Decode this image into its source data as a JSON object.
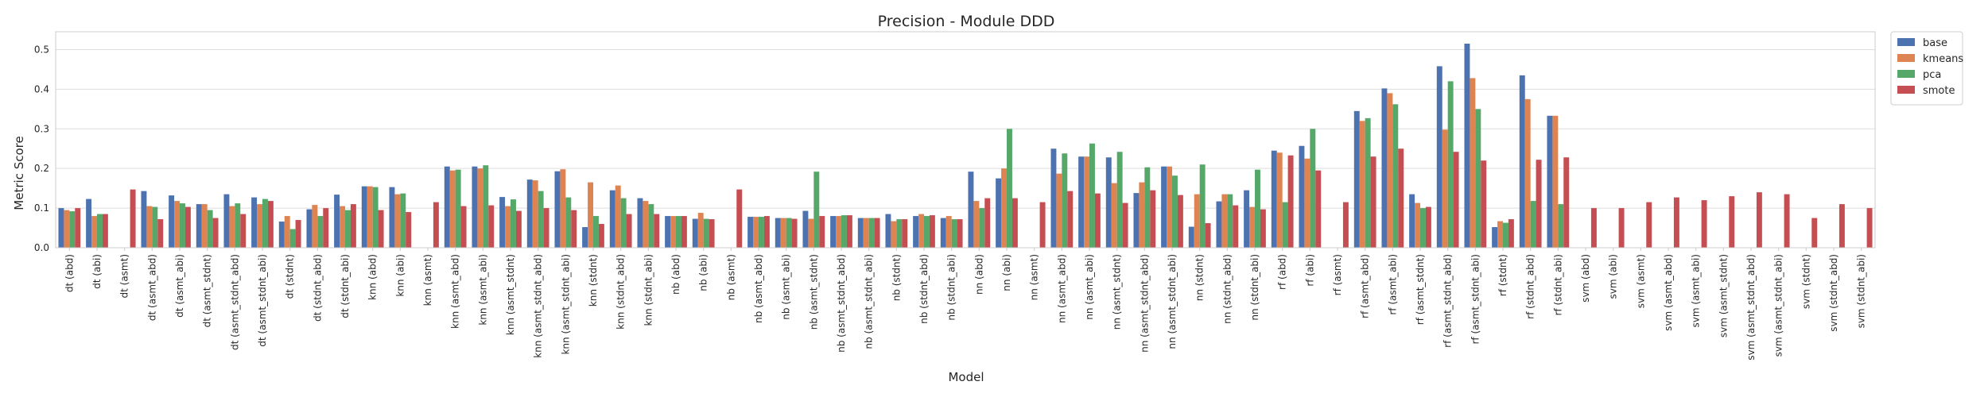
{
  "chart_data": {
    "type": "bar",
    "title": "Precision - Module DDD",
    "xlabel": "Model",
    "ylabel": "Metric Score",
    "ylim": [
      0,
      0.545
    ],
    "yticks": [
      0.0,
      0.1,
      0.2,
      0.3,
      0.4,
      0.5
    ],
    "ytick_labels": [
      "0.0",
      "0.1",
      "0.2",
      "0.3",
      "0.4",
      "0.5"
    ],
    "grid": true,
    "legend_position": "upper-right-outside",
    "categories": [
      "dt (abd)",
      "dt (abi)",
      "dt (asmt)",
      "dt (asmt_abd)",
      "dt (asmt_abi)",
      "dt (asmt_stdnt)",
      "dt (asmt_stdnt_abd)",
      "dt (asmt_stdnt_abi)",
      "dt (stdnt)",
      "dt (stdnt_abd)",
      "dt (stdnt_abi)",
      "knn (abd)",
      "knn (abi)",
      "knn (asmt)",
      "knn (asmt_abd)",
      "knn (asmt_abi)",
      "knn (asmt_stdnt)",
      "knn (asmt_stdnt_abd)",
      "knn (asmt_stdnt_abi)",
      "knn (stdnt)",
      "knn (stdnt_abd)",
      "knn (stdnt_abi)",
      "nb (abd)",
      "nb (abi)",
      "nb (asmt)",
      "nb (asmt_abd)",
      "nb (asmt_abi)",
      "nb (asmt_stdnt)",
      "nb (asmt_stdnt_abd)",
      "nb (asmt_stdnt_abi)",
      "nb (stdnt)",
      "nb (stdnt_abd)",
      "nb (stdnt_abi)",
      "nn (abd)",
      "nn (abi)",
      "nn (asmt)",
      "nn (asmt_abd)",
      "nn (asmt_abi)",
      "nn (asmt_stdnt)",
      "nn (asmt_stdnt_abd)",
      "nn (asmt_stdnt_abi)",
      "nn (stdnt)",
      "nn (stdnt_abd)",
      "nn (stdnt_abi)",
      "rf (abd)",
      "rf (abi)",
      "rf (asmt)",
      "rf (asmt_abd)",
      "rf (asmt_abi)",
      "rf (asmt_stdnt)",
      "rf (asmt_stdnt_abd)",
      "rf (asmt_stdnt_abi)",
      "rf (stdnt)",
      "rf (stdnt_abd)",
      "rf (stdnt_abi)",
      "svm (abd)",
      "svm (abi)",
      "svm (asmt)",
      "svm (asmt_abd)",
      "svm (asmt_abi)",
      "svm (asmt_stdnt)",
      "svm (asmt_stdnt_abd)",
      "svm (asmt_stdnt_abi)",
      "svm (stdnt)",
      "svm (stdnt_abd)",
      "svm (stdnt_abi)"
    ],
    "series": [
      {
        "name": "base",
        "color": "#4C72B0",
        "values": [
          0.1,
          0.123,
          null,
          0.143,
          0.132,
          0.11,
          0.135,
          0.127,
          0.066,
          0.097,
          0.134,
          0.155,
          0.153,
          null,
          0.205,
          0.205,
          0.128,
          0.172,
          0.193,
          0.052,
          0.145,
          0.125,
          0.08,
          0.073,
          null,
          0.078,
          0.075,
          0.093,
          0.08,
          0.075,
          0.085,
          0.08,
          0.075,
          0.192,
          0.175,
          null,
          0.25,
          0.23,
          0.228,
          0.138,
          0.205,
          0.053,
          0.117,
          0.145,
          0.245,
          0.257,
          null,
          0.345,
          0.402,
          0.135,
          0.458,
          0.515,
          0.052,
          0.435,
          0.333,
          null,
          null,
          null,
          null,
          null,
          null,
          null,
          null,
          null,
          null,
          null
        ]
      },
      {
        "name": "kmeans",
        "color": "#DD8452",
        "values": [
          0.095,
          0.08,
          null,
          0.105,
          0.118,
          0.11,
          0.105,
          0.11,
          0.08,
          0.108,
          0.105,
          0.155,
          0.135,
          null,
          0.195,
          0.2,
          0.105,
          0.17,
          0.198,
          0.165,
          0.157,
          0.118,
          0.08,
          0.088,
          null,
          0.078,
          0.075,
          0.073,
          0.08,
          0.075,
          0.067,
          0.085,
          0.08,
          0.118,
          0.2,
          null,
          0.187,
          0.23,
          0.163,
          0.165,
          0.205,
          0.135,
          0.135,
          0.103,
          0.24,
          0.225,
          null,
          0.32,
          0.39,
          0.113,
          0.298,
          0.428,
          0.067,
          0.375,
          0.333,
          null,
          null,
          null,
          null,
          null,
          null,
          null,
          null,
          null,
          null,
          null
        ]
      },
      {
        "name": "pca",
        "color": "#55A868",
        "values": [
          0.092,
          0.085,
          null,
          0.103,
          0.112,
          0.095,
          0.112,
          0.123,
          0.047,
          0.08,
          0.095,
          0.153,
          0.137,
          null,
          0.197,
          0.208,
          0.122,
          0.143,
          0.127,
          0.08,
          0.125,
          0.11,
          0.08,
          0.073,
          null,
          0.078,
          0.075,
          0.192,
          0.082,
          0.075,
          0.072,
          0.08,
          0.072,
          0.1,
          0.3,
          null,
          0.238,
          0.263,
          0.242,
          0.203,
          0.182,
          0.21,
          0.135,
          0.197,
          0.115,
          0.3,
          null,
          0.327,
          0.362,
          0.1,
          0.42,
          0.35,
          0.063,
          0.118,
          0.11,
          null,
          null,
          null,
          null,
          null,
          null,
          null,
          null,
          null,
          null,
          null
        ]
      },
      {
        "name": "smote",
        "color": "#C44E52",
        "values": [
          0.1,
          0.085,
          0.147,
          0.072,
          0.103,
          0.075,
          0.085,
          0.118,
          0.07,
          0.1,
          0.11,
          0.095,
          0.09,
          0.115,
          0.105,
          0.107,
          0.093,
          0.1,
          0.095,
          0.06,
          0.085,
          0.085,
          0.08,
          0.072,
          0.147,
          0.08,
          0.073,
          0.08,
          0.082,
          0.075,
          0.072,
          0.082,
          0.072,
          0.125,
          0.125,
          0.115,
          0.143,
          0.137,
          0.113,
          0.145,
          0.133,
          0.062,
          0.107,
          0.097,
          0.233,
          0.195,
          0.115,
          0.23,
          0.25,
          0.103,
          0.242,
          0.22,
          0.072,
          0.222,
          0.228,
          0.1,
          0.1,
          0.115,
          0.127,
          0.12,
          0.13,
          0.14,
          0.135,
          0.075,
          0.11,
          0.1
        ]
      }
    ]
  }
}
